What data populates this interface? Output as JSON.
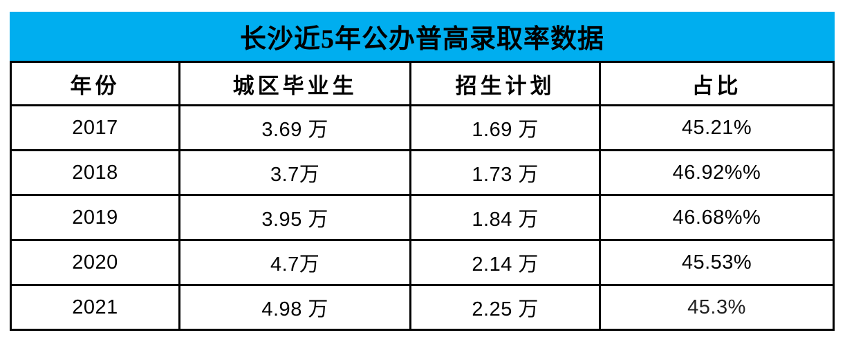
{
  "title": "长沙近5年公办普高录取率数据",
  "colors": {
    "title_bg": "#00AEEF",
    "border": "#000000",
    "text": "#000000"
  },
  "table": {
    "headers": [
      "年份",
      "城区毕业生",
      "招生计划",
      "占比"
    ],
    "rows": [
      [
        "2017",
        "3.69 万",
        "1.69 万",
        "45.21%"
      ],
      [
        "2018",
        "3.7万",
        "1.73 万",
        "46.92%%"
      ],
      [
        "2019",
        "3.95 万",
        "1.84 万",
        "46.68%%"
      ],
      [
        "2020",
        "4.7万",
        "2.14 万",
        "45.53%"
      ],
      [
        "2021",
        "4.98 万",
        "2.25 万",
        "45.3%"
      ]
    ]
  },
  "chart_data": {
    "type": "table",
    "title": "长沙近5年公办普高录取率数据",
    "columns": [
      "年份",
      "城区毕业生",
      "招生计划",
      "占比"
    ],
    "rows": [
      [
        "2017",
        "3.69 万",
        "1.69 万",
        "45.21%"
      ],
      [
        "2018",
        "3.7万",
        "1.73 万",
        "46.92%%"
      ],
      [
        "2019",
        "3.95 万",
        "1.84 万",
        "46.68%%"
      ],
      [
        "2020",
        "4.7万",
        "2.14 万",
        "45.53%"
      ],
      [
        "2021",
        "4.98 万",
        "2.25 万",
        "45.3%"
      ]
    ],
    "series": [
      {
        "name": "城区毕业生(万)",
        "values": [
          3.69,
          3.7,
          3.95,
          4.7,
          4.98
        ]
      },
      {
        "name": "招生计划(万)",
        "values": [
          1.69,
          1.73,
          1.84,
          2.14,
          2.25
        ]
      },
      {
        "name": "占比(%)",
        "values": [
          45.21,
          46.92,
          46.68,
          45.53,
          45.3
        ]
      }
    ],
    "x": [
      2017,
      2018,
      2019,
      2020,
      2021
    ]
  }
}
